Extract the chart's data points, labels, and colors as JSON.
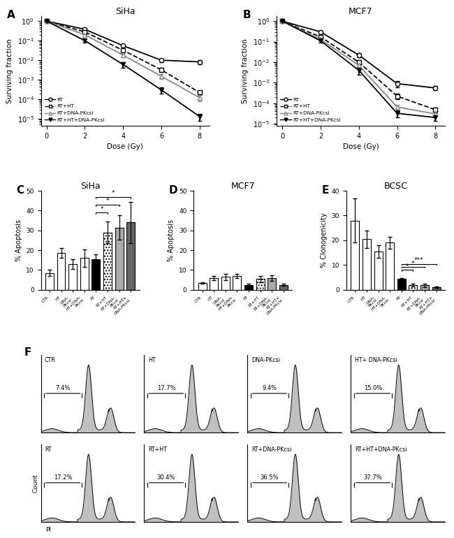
{
  "panel_A_title": "SiHa",
  "panel_B_title": "MCF7",
  "panel_C_title": "SiHa",
  "panel_D_title": "MCF7",
  "panel_E_title": "BCSC",
  "survival_doses": [
    0,
    2,
    4,
    6,
    8
  ],
  "siha_RT_mean": [
    1.0,
    0.38,
    0.055,
    0.01,
    0.0082
  ],
  "siha_RT_err": [
    0.0,
    0.05,
    0.008,
    0.002,
    0.002
  ],
  "siha_RTHT_mean": [
    1.0,
    0.28,
    0.032,
    0.0032,
    0.00022
  ],
  "siha_RTHT_err": [
    0.0,
    0.04,
    0.006,
    0.0008,
    6e-05
  ],
  "siha_RTDNAPKcsi_mean": [
    1.0,
    0.2,
    0.018,
    0.0015,
    0.00012
  ],
  "siha_RTDNAPKcsi_err": [
    0.0,
    0.03,
    0.004,
    0.0004,
    4e-05
  ],
  "siha_RTHTDNAPKcsi_mean": [
    1.0,
    0.1,
    0.006,
    0.0003,
    1.3e-05
  ],
  "siha_RTHTDNAPKcsi_err": [
    0.0,
    0.02,
    0.002,
    0.0001,
    5e-06
  ],
  "mcf7_RT_mean": [
    1.0,
    0.3,
    0.022,
    0.0009,
    0.00055
  ],
  "mcf7_RT_err": [
    0.0,
    0.04,
    0.005,
    0.0003,
    0.00012
  ],
  "mcf7_RTHT_mean": [
    1.0,
    0.17,
    0.01,
    0.00022,
    4.8e-05
  ],
  "mcf7_RTHT_err": [
    0.0,
    0.03,
    0.003,
    7e-05,
    1.5e-05
  ],
  "mcf7_RTDNAPKcsi_mean": [
    1.0,
    0.13,
    0.007,
    6.5e-05,
    3e-05
  ],
  "mcf7_RTDNAPKcsi_err": [
    0.0,
    0.025,
    0.002,
    2e-05,
    8e-06
  ],
  "mcf7_RTHTDNAPKcsi_mean": [
    1.0,
    0.11,
    0.004,
    3.2e-05,
    2e-05
  ],
  "mcf7_RTHTDNAPKcsi_err": [
    0.0,
    0.02,
    0.0015,
    1.2e-05,
    6e-06
  ],
  "apoptosis_C_values": [
    8.5,
    18.5,
    13.0,
    16.0,
    15.5,
    29.0,
    31.5,
    34.0
  ],
  "apoptosis_C_errors": [
    1.5,
    2.5,
    2.5,
    4.5,
    2.5,
    5.5,
    6.0,
    10.5
  ],
  "apoptosis_C_colors": [
    "white",
    "white",
    "white",
    "white",
    "black",
    "dotted",
    "gray_light",
    "gray_dark"
  ],
  "apoptosis_D_values": [
    3.5,
    6.0,
    6.5,
    7.0,
    2.5,
    5.5,
    6.0,
    2.5
  ],
  "apoptosis_D_errors": [
    0.5,
    1.0,
    1.5,
    1.0,
    0.5,
    1.5,
    1.5,
    0.5
  ],
  "apoptosis_D_colors": [
    "white",
    "white",
    "white",
    "white",
    "black",
    "dotted",
    "gray_light",
    "gray_dark"
  ],
  "clonogenicity_E_values": [
    28.0,
    20.5,
    15.5,
    19.0,
    4.4,
    2.0,
    1.9,
    1.1
  ],
  "clonogenicity_E_errors": [
    9.0,
    3.5,
    2.5,
    2.5,
    0.4,
    0.6,
    0.7,
    0.4
  ],
  "clonogenicity_E_colors": [
    "white",
    "white",
    "white",
    "white",
    "black",
    "dotted",
    "gray_light",
    "gray_dark"
  ],
  "bar_categories": [
    "CTR",
    "HT",
    "DNA-PKcsi",
    "HT+DNA-PKcsi",
    "RT",
    "RT+HT",
    "RT+DNA-PKcsi",
    "RT+HT+DNA-PKcsi"
  ],
  "bar_short_labels": [
    "CTR",
    "HT",
    "DNA-\nPKcsi",
    "HT+DNA-\nPKcsi",
    "RT",
    "RT+HT",
    "RT+DNA-\nPKcsi",
    "RT+HT+\nDNA-PKcsi"
  ],
  "flow_labels_row1": [
    "CTR",
    "HT",
    "DNA-PKcsi",
    "HT+ DNA-PKcsi"
  ],
  "flow_labels_row2": [
    "RT",
    "RT+HT",
    "RT+DNA-PKcsi",
    "RT+HT+DNA-PKcsi"
  ],
  "flow_pcts_row1": [
    "7.4%",
    "17.7%",
    "9.4%",
    "15.0%"
  ],
  "flow_pcts_row2": [
    "17.2%",
    "30.4%",
    "36.5%",
    "37.7%"
  ],
  "ylabel_survival": "Surviving fraction",
  "xlabel_survival": "Dose (Gy)",
  "legend_RT": "RT",
  "legend_RTHT": "RT+HT",
  "legend_RTDNAPKcsi": "RT+DNA-PKcsi",
  "legend_RTHTDNAPKcsi": "RT+HT+DNA-PKcsi",
  "ylabel_apoptosis": "% Apoptosis",
  "ylabel_clonogenicity": "% Clonogenicity",
  "xlabel_flow": "PI",
  "ylabel_flow": "Count"
}
